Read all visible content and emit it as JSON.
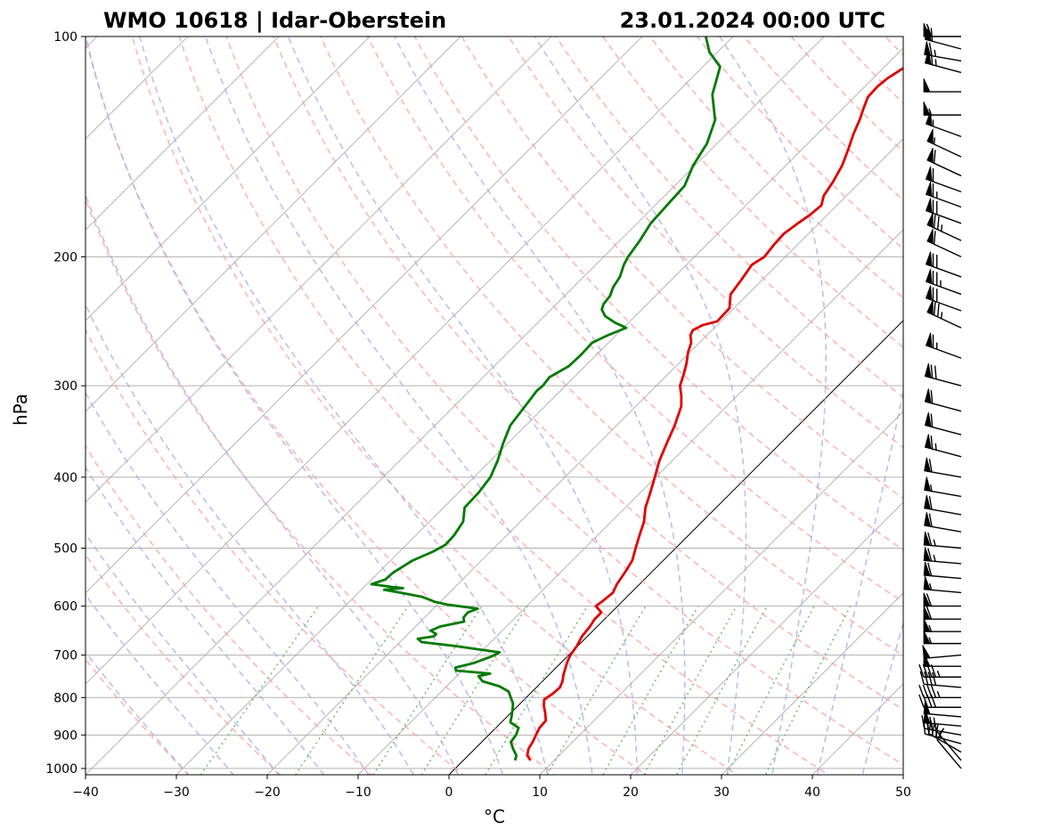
{
  "chart_data": {
    "type": "line",
    "subtype": "skew-t log-p",
    "title_left": "WMO 10618 | Idar-Oberstein",
    "title_right": "23.01.2024 00:00 UTC",
    "xlabel": "°C",
    "ylabel": "hPa",
    "xlim": [
      -40,
      50
    ],
    "ylim": [
      1020,
      100
    ],
    "yscale": "log",
    "grid": true,
    "x_ticks": [
      "−40",
      "−30",
      "−20",
      "−10",
      "0",
      "10",
      "20",
      "30",
      "40",
      "50"
    ],
    "x_tick_values": [
      -40,
      -30,
      -20,
      -10,
      0,
      10,
      20,
      30,
      40,
      50
    ],
    "y_ticks": [
      "100",
      "200",
      "300",
      "400",
      "500",
      "600",
      "700",
      "800",
      "900",
      "1000"
    ],
    "y_tick_values": [
      100,
      200,
      300,
      400,
      500,
      600,
      700,
      800,
      900,
      1000
    ],
    "colors": {
      "temperature": "#e00000",
      "dewpoint": "#007a00",
      "dry_adiabat": "#ff9c9c",
      "moist_adiabat": "#a8a8f0",
      "mixing_ratio": "#66bb66",
      "isotherm": "#999999",
      "zero_isotherm": "#000000",
      "grid": "#b0b0b0"
    },
    "series": [
      {
        "key": "temperature",
        "points": [
          [
            975,
            7.4
          ],
          [
            960,
            6.5
          ],
          [
            940,
            5.9
          ],
          [
            920,
            5.6
          ],
          [
            900,
            5.2
          ],
          [
            880,
            4.8
          ],
          [
            860,
            4.7
          ],
          [
            840,
            3.8
          ],
          [
            820,
            2.8
          ],
          [
            805,
            2.2
          ],
          [
            790,
            2.5
          ],
          [
            775,
            2.6
          ],
          [
            760,
            2.2
          ],
          [
            745,
            1.6
          ],
          [
            730,
            1.1
          ],
          [
            715,
            0.6
          ],
          [
            700,
            0.2
          ],
          [
            680,
            -0.1
          ],
          [
            660,
            -0.6
          ],
          [
            640,
            -0.8
          ],
          [
            625,
            -1.1
          ],
          [
            612,
            -1.1
          ],
          [
            600,
            -2.4
          ],
          [
            590,
            -2.2
          ],
          [
            575,
            -2.0
          ],
          [
            560,
            -2.5
          ],
          [
            540,
            -2.9
          ],
          [
            520,
            -3.4
          ],
          [
            500,
            -4.4
          ],
          [
            480,
            -5.4
          ],
          [
            460,
            -6.4
          ],
          [
            440,
            -7.8
          ],
          [
            420,
            -8.9
          ],
          [
            400,
            -10.1
          ],
          [
            380,
            -11.4
          ],
          [
            360,
            -12.5
          ],
          [
            340,
            -13.6
          ],
          [
            320,
            -15.0
          ],
          [
            310,
            -16.1
          ],
          [
            300,
            -17.4
          ],
          [
            290,
            -18.2
          ],
          [
            280,
            -19.1
          ],
          [
            270,
            -20.2
          ],
          [
            262,
            -20.9
          ],
          [
            256,
            -21.8
          ],
          [
            252,
            -22.1
          ],
          [
            248,
            -21.6
          ],
          [
            245,
            -20.4
          ],
          [
            235,
            -20.5
          ],
          [
            225,
            -21.9
          ],
          [
            215,
            -22.3
          ],
          [
            205,
            -22.8
          ],
          [
            200,
            -22.3
          ],
          [
            192,
            -22.6
          ],
          [
            186,
            -22.7
          ],
          [
            180,
            -22.3
          ],
          [
            175,
            -21.9
          ],
          [
            170,
            -21.7
          ],
          [
            165,
            -22.5
          ],
          [
            158,
            -23.0
          ],
          [
            150,
            -23.8
          ],
          [
            142,
            -25.0
          ],
          [
            136,
            -26.0
          ],
          [
            130,
            -26.9
          ],
          [
            125,
            -27.8
          ],
          [
            121,
            -28.5
          ],
          [
            117,
            -28.6
          ],
          [
            114,
            -28.4
          ],
          [
            110,
            -27.7
          ],
          [
            107,
            -24.8
          ],
          [
            104,
            -22.3
          ],
          [
            101,
            -22.3
          ],
          [
            100,
            -22.6
          ]
        ]
      },
      {
        "key": "dewpoint",
        "points": [
          [
            975,
            5.7
          ],
          [
            960,
            5.3
          ],
          [
            940,
            4.2
          ],
          [
            920,
            3.2
          ],
          [
            900,
            3.0
          ],
          [
            880,
            2.5
          ],
          [
            865,
            1.0
          ],
          [
            850,
            0.5
          ],
          [
            830,
            -0.2
          ],
          [
            815,
            -0.8
          ],
          [
            800,
            -1.7
          ],
          [
            785,
            -2.6
          ],
          [
            772,
            -4.2
          ],
          [
            760,
            -6.6
          ],
          [
            748,
            -7.6
          ],
          [
            742,
            -6.6
          ],
          [
            735,
            -10.7
          ],
          [
            728,
            -11.1
          ],
          [
            718,
            -9.6
          ],
          [
            704,
            -8.4
          ],
          [
            694,
            -7.9
          ],
          [
            688,
            -10.4
          ],
          [
            680,
            -13.6
          ],
          [
            672,
            -17.6
          ],
          [
            665,
            -18.4
          ],
          [
            660,
            -16.9
          ],
          [
            655,
            -16.9
          ],
          [
            648,
            -17.9
          ],
          [
            640,
            -17.3
          ],
          [
            630,
            -15.2
          ],
          [
            622,
            -15.7
          ],
          [
            612,
            -15.8
          ],
          [
            605,
            -15.1
          ],
          [
            597,
            -19.0
          ],
          [
            592,
            -20.6
          ],
          [
            588,
            -21.4
          ],
          [
            583,
            -22.5
          ],
          [
            576,
            -25.1
          ],
          [
            570,
            -27.5
          ],
          [
            567,
            -25.6
          ],
          [
            565,
            -26.9
          ],
          [
            560,
            -29.5
          ],
          [
            552,
            -28.5
          ],
          [
            540,
            -28.4
          ],
          [
            520,
            -27.6
          ],
          [
            505,
            -26.3
          ],
          [
            495,
            -25.7
          ],
          [
            480,
            -25.8
          ],
          [
            460,
            -26.3
          ],
          [
            440,
            -27.7
          ],
          [
            420,
            -27.8
          ],
          [
            400,
            -28.2
          ],
          [
            380,
            -29.2
          ],
          [
            360,
            -30.5
          ],
          [
            340,
            -31.7
          ],
          [
            320,
            -32.2
          ],
          [
            305,
            -32.6
          ],
          [
            300,
            -32.5
          ],
          [
            292,
            -32.7
          ],
          [
            282,
            -31.8
          ],
          [
            272,
            -31.7
          ],
          [
            262,
            -31.8
          ],
          [
            256,
            -30.9
          ],
          [
            250,
            -29.7
          ],
          [
            246,
            -31.5
          ],
          [
            241,
            -33.3
          ],
          [
            236,
            -34.4
          ],
          [
            232,
            -34.8
          ],
          [
            226,
            -35.0
          ],
          [
            220,
            -35.6
          ],
          [
            213,
            -36.0
          ],
          [
            205,
            -36.9
          ],
          [
            200,
            -37.3
          ],
          [
            190,
            -37.8
          ],
          [
            180,
            -38.5
          ],
          [
            170,
            -38.7
          ],
          [
            160,
            -38.9
          ],
          [
            150,
            -40.2
          ],
          [
            140,
            -41.1
          ],
          [
            130,
            -42.8
          ],
          [
            120,
            -45.9
          ],
          [
            110,
            -48.1
          ],
          [
            105,
            -50.9
          ],
          [
            100,
            -53.0
          ]
        ]
      }
    ],
    "wind_barbs": [
      {
        "p": 1000,
        "dir": 320,
        "spd": 10
      },
      {
        "p": 975,
        "dir": 320,
        "spd": 5
      },
      {
        "p": 950,
        "dir": 300,
        "spd": 30
      },
      {
        "p": 925,
        "dir": 285,
        "spd": 45
      },
      {
        "p": 900,
        "dir": 280,
        "spd": 40
      },
      {
        "p": 875,
        "dir": 275,
        "spd": 50
      },
      {
        "p": 850,
        "dir": 275,
        "spd": 50
      },
      {
        "p": 825,
        "dir": 270,
        "spd": 40
      },
      {
        "p": 800,
        "dir": 270,
        "spd": 45
      },
      {
        "p": 775,
        "dir": 275,
        "spd": 40
      },
      {
        "p": 750,
        "dir": 270,
        "spd": 45
      },
      {
        "p": 725,
        "dir": 270,
        "spd": 50
      },
      {
        "p": 700,
        "dir": 265,
        "spd": 50
      },
      {
        "p": 675,
        "dir": 270,
        "spd": 55
      },
      {
        "p": 650,
        "dir": 270,
        "spd": 55
      },
      {
        "p": 625,
        "dir": 270,
        "spd": 60
      },
      {
        "p": 600,
        "dir": 270,
        "spd": 60
      },
      {
        "p": 575,
        "dir": 275,
        "spd": 55
      },
      {
        "p": 550,
        "dir": 275,
        "spd": 60
      },
      {
        "p": 525,
        "dir": 275,
        "spd": 65
      },
      {
        "p": 500,
        "dir": 275,
        "spd": 65
      },
      {
        "p": 475,
        "dir": 280,
        "spd": 60
      },
      {
        "p": 450,
        "dir": 280,
        "spd": 60
      },
      {
        "p": 425,
        "dir": 280,
        "spd": 55
      },
      {
        "p": 400,
        "dir": 280,
        "spd": 60
      },
      {
        "p": 375,
        "dir": 285,
        "spd": 65
      },
      {
        "p": 350,
        "dir": 285,
        "spd": 60
      },
      {
        "p": 325,
        "dir": 285,
        "spd": 60
      },
      {
        "p": 300,
        "dir": 285,
        "spd": 70
      },
      {
        "p": 275,
        "dir": 290,
        "spd": 65
      },
      {
        "p": 250,
        "dir": 295,
        "spd": 75
      },
      {
        "p": 237,
        "dir": 290,
        "spd": 70
      },
      {
        "p": 225,
        "dir": 290,
        "spd": 75
      },
      {
        "p": 213,
        "dir": 290,
        "spd": 70
      },
      {
        "p": 200,
        "dir": 295,
        "spd": 60
      },
      {
        "p": 190,
        "dir": 295,
        "spd": 75
      },
      {
        "p": 180,
        "dir": 290,
        "spd": 70
      },
      {
        "p": 171,
        "dir": 290,
        "spd": 65
      },
      {
        "p": 163,
        "dir": 290,
        "spd": 60
      },
      {
        "p": 155,
        "dir": 295,
        "spd": 60
      },
      {
        "p": 146,
        "dir": 295,
        "spd": 55
      },
      {
        "p": 137,
        "dir": 290,
        "spd": 55
      },
      {
        "p": 128,
        "dir": 270,
        "spd": 55
      },
      {
        "p": 119,
        "dir": 270,
        "spd": 50
      },
      {
        "p": 112,
        "dir": 285,
        "spd": 65
      },
      {
        "p": 108,
        "dir": 280,
        "spd": 65
      },
      {
        "p": 104,
        "dir": 285,
        "spd": 60
      },
      {
        "p": 100,
        "dir": 270,
        "spd": 60
      }
    ]
  }
}
